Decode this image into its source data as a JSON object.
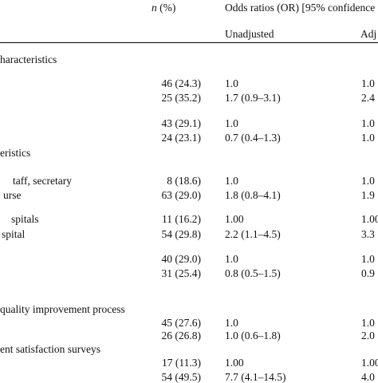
{
  "header": {
    "n_symbol": "n",
    "n_suffix": " (%)",
    "or_group": "Odds ratios (OR) [95% confidence",
    "unadjusted": "Unadjusted",
    "adjusted": "Adj"
  },
  "sections": {
    "s1": "haracteristics",
    "s2": "eristics",
    "s3": "quality improvement process",
    "s4": "ent satisfaction surveys"
  },
  "labels": {
    "l1": "taff, secretary",
    "l2": "urse",
    "l3": "spitals",
    "l4": "spital"
  },
  "rows": [
    {
      "n": "46 (24.3)",
      "unadj": "1.0",
      "adj": "1.0"
    },
    {
      "n": "25 (35.2)",
      "unadj": "1.7 (0.9–3.1)",
      "adj": "2.4"
    },
    {
      "n": "43 (29.1)",
      "unadj": "1.0",
      "adj": "1.0"
    },
    {
      "n": "24 (23.1)",
      "unadj": "0.7 (0.4–1.3)",
      "adj": "1.0"
    },
    {
      "n": "8 (18.6)",
      "unadj": "1.0",
      "adj": "1.0"
    },
    {
      "n": "63 (29.0)",
      "unadj": "1.8 (0.8–4.1)",
      "adj": "1.9"
    },
    {
      "n": "11 (16.2)",
      "unadj": "1.00",
      "adj": "1.00"
    },
    {
      "n": "54 (29.8)",
      "unadj": "2.2 (1.1–4.5)",
      "adj": "3.3"
    },
    {
      "n": "40 (29.0)",
      "unadj": "1.0",
      "adj": "1.0"
    },
    {
      "n": "31 (25.4)",
      "unadj": "0.8 (0.5–1.5)",
      "adj": "0.9"
    },
    {
      "n": "45 (27.6)",
      "unadj": "1.0",
      "adj": "1.0"
    },
    {
      "n": "26 (26.8)",
      "unadj": "1.0 (0.6–1.8)",
      "adj": "2.0"
    },
    {
      "n": "17 (11.3)",
      "unadj": "1.00",
      "adj": "1.00"
    },
    {
      "n": "54 (49.5)",
      "unadj": "7.7 (4.1–14.5)",
      "adj": "4.0"
    }
  ]
}
